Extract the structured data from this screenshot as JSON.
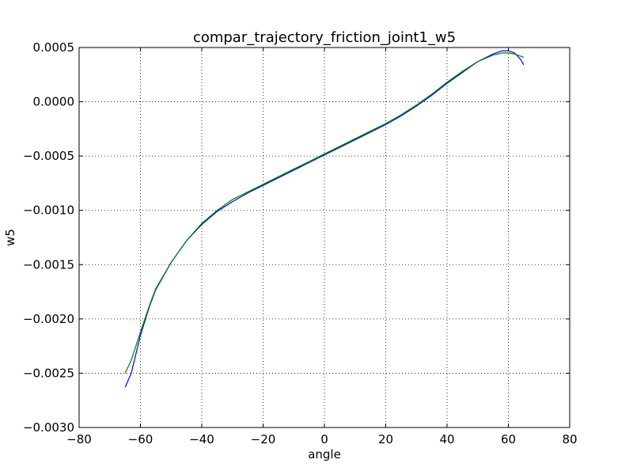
{
  "chart_data": {
    "type": "line",
    "title": "compar_trajectory_friction_joint1_w5",
    "xlabel": "angle",
    "ylabel": "w5",
    "xlim": [
      -80,
      80
    ],
    "ylim": [
      -0.003,
      0.0005
    ],
    "grid": true,
    "x_ticks": [
      -80,
      -60,
      -40,
      -20,
      0,
      20,
      40,
      60,
      80
    ],
    "x_tick_labels": [
      "−80",
      "−60",
      "−40",
      "−20",
      "0",
      "20",
      "40",
      "60",
      "80"
    ],
    "y_ticks": [
      -0.003,
      -0.0025,
      -0.002,
      -0.0015,
      -0.001,
      -0.0005,
      0.0,
      0.0005
    ],
    "y_tick_labels": [
      "−0.0030",
      "−0.0025",
      "−0.0020",
      "−0.0015",
      "−0.0010",
      "−0.0005",
      "0.0000",
      "0.0005"
    ],
    "series": [
      {
        "color": "#0000ff",
        "x": [
          -65,
          -63,
          -60,
          -57,
          -55,
          -50,
          -45,
          -40,
          -35,
          -30,
          -25,
          -20,
          -15,
          -10,
          -5,
          0,
          5,
          10,
          15,
          20,
          25,
          30,
          35,
          40,
          45,
          50,
          55,
          58,
          60,
          62,
          64,
          65
        ],
        "y": [
          -0.00263,
          -0.0025,
          -0.00215,
          -0.00188,
          -0.00173,
          -0.00148,
          -0.00128,
          -0.00113,
          -0.00101,
          -0.00092,
          -0.00084,
          -0.00077,
          -0.0007,
          -0.00063,
          -0.00056,
          -0.00049,
          -0.00042,
          -0.00035,
          -0.00028,
          -0.00021,
          -0.00013,
          -4e-05,
          6e-05,
          0.00017,
          0.00027,
          0.00037,
          0.00044,
          0.00047,
          0.00047,
          0.00045,
          0.00039,
          0.00034
        ]
      },
      {
        "color": "#007f00",
        "x": [
          -65,
          -63,
          -60,
          -57,
          -55,
          -50,
          -45,
          -40,
          -35,
          -30,
          -25,
          -20,
          -15,
          -10,
          -5,
          0,
          5,
          10,
          15,
          20,
          25,
          30,
          35,
          40,
          45,
          50,
          55,
          58,
          60,
          62,
          64,
          65
        ],
        "y": [
          -0.0025,
          -0.00238,
          -0.00212,
          -0.00187,
          -0.00172,
          -0.00148,
          -0.00128,
          -0.00112,
          -0.001,
          -0.0009,
          -0.00083,
          -0.00076,
          -0.00069,
          -0.00062,
          -0.00055,
          -0.00048,
          -0.00041,
          -0.00034,
          -0.00027,
          -0.0002,
          -0.00012,
          -3e-05,
          7e-05,
          0.00018,
          0.00028,
          0.00037,
          0.00043,
          0.00045,
          0.00045,
          0.00044,
          0.00042,
          0.00041
        ]
      }
    ]
  }
}
